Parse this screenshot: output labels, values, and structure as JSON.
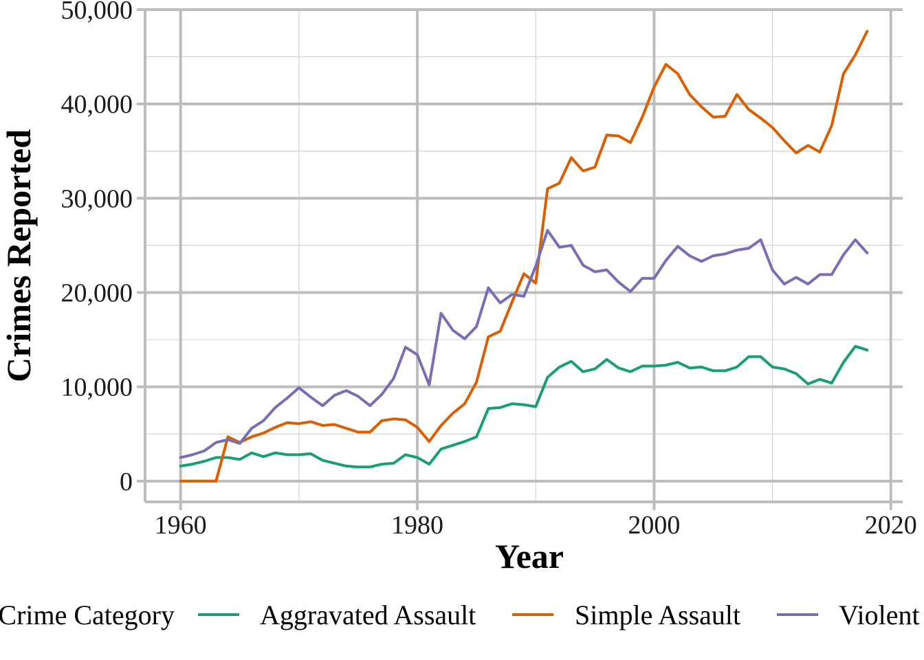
{
  "chart_data": {
    "type": "line",
    "xlabel": "Year",
    "ylabel": "Crimes Reported",
    "xlim": [
      1957,
      2021
    ],
    "ylim": [
      -2200,
      50000
    ],
    "x_ticks": [
      1960,
      1980,
      2000,
      2020
    ],
    "x_tick_labels": [
      "1960",
      "1980",
      "2000",
      "2020"
    ],
    "y_ticks": [
      0,
      10000,
      20000,
      30000,
      40000,
      50000
    ],
    "y_tick_labels": [
      "0",
      "10,000",
      "20,000",
      "30,000",
      "40,000",
      "50,000"
    ],
    "grid": true,
    "legend_position": "bottom",
    "legend_title": "Crime Category",
    "x": [
      1960,
      1961,
      1962,
      1963,
      1964,
      1965,
      1966,
      1967,
      1968,
      1969,
      1970,
      1971,
      1972,
      1973,
      1974,
      1975,
      1976,
      1977,
      1978,
      1979,
      1980,
      1981,
      1982,
      1983,
      1984,
      1985,
      1986,
      1987,
      1988,
      1989,
      1990,
      1991,
      1992,
      1993,
      1994,
      1995,
      1996,
      1997,
      1998,
      1999,
      2000,
      2001,
      2002,
      2003,
      2004,
      2005,
      2006,
      2007,
      2008,
      2009,
      2010,
      2011,
      2012,
      2013,
      2014,
      2015,
      2016,
      2017,
      2018
    ],
    "series": [
      {
        "name": "Aggravated Assault",
        "color": "#1b9e77",
        "values": [
          1600,
          1800,
          2100,
          2500,
          2500,
          2300,
          3000,
          2600,
          3000,
          2800,
          2800,
          2900,
          2200,
          1900,
          1600,
          1500,
          1500,
          1800,
          1900,
          2800,
          2500,
          1800,
          3400,
          3800,
          4200,
          4700,
          7700,
          7800,
          8200,
          8100,
          7900,
          11000,
          12100,
          12700,
          11600,
          11900,
          12900,
          12000,
          11600,
          12200,
          12200,
          12300,
          12600,
          12000,
          12100,
          11700,
          11700,
          12100,
          13200,
          13200,
          12100,
          11900,
          11400,
          10300,
          10800,
          10400,
          12600,
          14300,
          13900
        ]
      },
      {
        "name": "Simple Assault",
        "color": "#d95f02",
        "values": [
          0,
          0,
          0,
          0,
          4700,
          4100,
          4700,
          5100,
          5700,
          6200,
          6100,
          6300,
          5900,
          6000,
          5600,
          5200,
          5200,
          6400,
          6600,
          6500,
          5700,
          4200,
          5900,
          7200,
          8200,
          10500,
          15300,
          15900,
          19000,
          22000,
          21000,
          31000,
          31600,
          34300,
          32900,
          33300,
          36700,
          36600,
          35900,
          38600,
          41800,
          44200,
          43200,
          41000,
          39700,
          38600,
          38700,
          41000,
          39400,
          38500,
          37500,
          36100,
          34800,
          35600,
          34900,
          37700,
          43200,
          45200,
          47700
        ]
      },
      {
        "name": "Violent",
        "color": "#7570b3",
        "values": [
          2500,
          2800,
          3200,
          4100,
          4400,
          4000,
          5600,
          6400,
          7800,
          8800,
          9900,
          8900,
          8000,
          9100,
          9600,
          9000,
          8000,
          9200,
          10900,
          14200,
          13400,
          10200,
          17800,
          16000,
          15100,
          16400,
          20500,
          18900,
          19800,
          19600,
          22800,
          26600,
          24800,
          25000,
          22900,
          22200,
          22400,
          21100,
          20100,
          21500,
          21500,
          23400,
          24900,
          23900,
          23300,
          23900,
          24100,
          24500,
          24700,
          25600,
          22400,
          20900,
          21600,
          20900,
          21900,
          21900,
          24000,
          25600,
          24200
        ]
      }
    ]
  }
}
